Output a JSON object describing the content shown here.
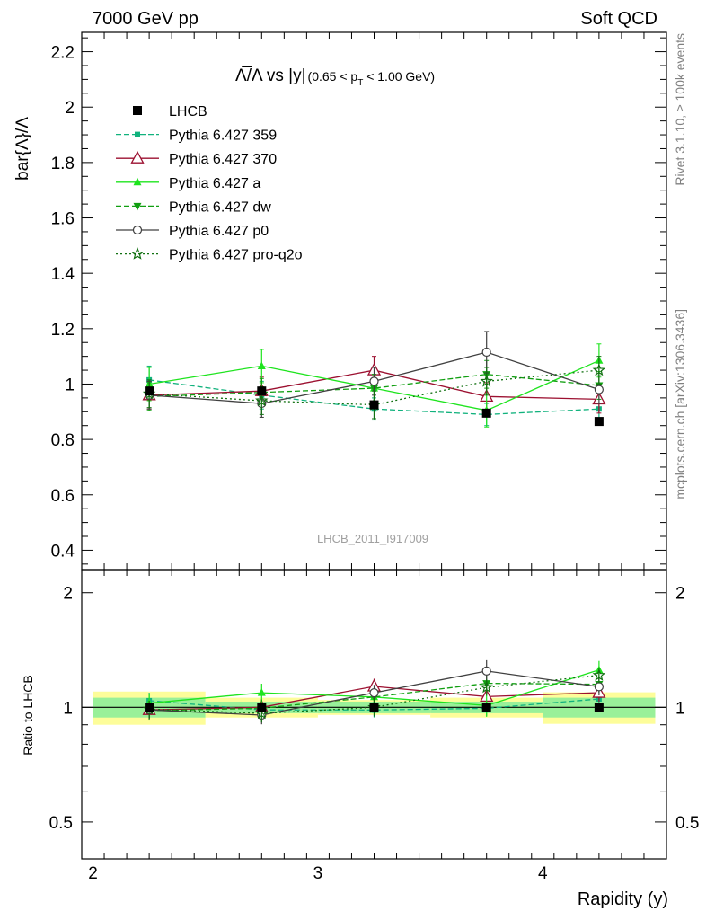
{
  "header": {
    "left": "7000 GeV pp",
    "right": "Soft QCD"
  },
  "side_labels": {
    "rivet": "Rivet 3.1.10, ≥ 100k events",
    "mcplots": "mcplots.cern.ch [arXiv:1306.3436]"
  },
  "chart_data": {
    "type": "line",
    "title": {
      "main": "Λ̅/Λ vs |y|",
      "cut_prefix": "(0.65 < p",
      "cut_sub": "T",
      "cut_suffix": " < 1.00 GeV)"
    },
    "analysis_label": "LHCB_2011_I917009",
    "xlabel": "Rapidity (y)",
    "ylabel": "bar{Λ}/Λ",
    "ratio_ylabel": "Ratio to LHCB",
    "xlim": [
      1.95,
      4.55
    ],
    "ylim": [
      0.33,
      2.27
    ],
    "ratio_ylim": [
      0.4,
      2.3
    ],
    "x_ticks": [
      "2",
      "3",
      "4"
    ],
    "y_ticks": [
      "0.4",
      "0.6",
      "0.8",
      "1",
      "1.2",
      "1.4",
      "1.6",
      "1.8",
      "2",
      "2.2"
    ],
    "ratio_ticks": [
      "0.5",
      "1",
      "2"
    ],
    "x": [
      2.25,
      2.75,
      3.25,
      3.75,
      4.25
    ],
    "data": {
      "name": "LHCB",
      "values": [
        0.975,
        0.975,
        0.925,
        0.895,
        0.865
      ],
      "bins": [
        [
          2.0,
          2.5
        ],
        [
          2.5,
          3.0
        ],
        [
          3.0,
          3.5
        ],
        [
          3.5,
          4.0
        ],
        [
          4.0,
          4.5
        ]
      ],
      "ratio_band_inner": [
        0.06,
        0.035,
        0.035,
        0.035,
        0.06
      ],
      "ratio_band_outer": [
        0.1,
        0.06,
        0.045,
        0.06,
        0.095
      ]
    },
    "series": [
      {
        "name": "Pythia 6.427 359",
        "color": "#11b27d",
        "dash": "6,3",
        "marker": "small-square",
        "values": [
          1.015,
          0.96,
          0.91,
          0.89,
          0.91
        ],
        "errors": [
          0.05,
          0.05,
          0.04,
          0.04,
          0.04
        ]
      },
      {
        "name": "Pythia 6.427 370",
        "color": "#9c1030",
        "dash": "",
        "marker": "open-triangle",
        "values": [
          0.96,
          0.975,
          1.05,
          0.955,
          0.945
        ],
        "errors": [
          0.05,
          0.05,
          0.05,
          0.05,
          0.05
        ]
      },
      {
        "name": "Pythia 6.427 a",
        "color": "#1ee41e",
        "dash": "",
        "marker": "filled-triangle",
        "values": [
          1.0,
          1.065,
          0.985,
          0.905,
          1.085
        ],
        "errors": [
          0.06,
          0.06,
          0.05,
          0.06,
          0.06
        ]
      },
      {
        "name": "Pythia 6.427 dw",
        "color": "#119f11",
        "dash": "6,3",
        "marker": "filled-triangle-down",
        "values": [
          0.955,
          0.97,
          0.985,
          1.035,
          0.995
        ],
        "errors": [
          0.05,
          0.05,
          0.05,
          0.05,
          0.05
        ]
      },
      {
        "name": "Pythia 6.427 p0",
        "color": "#404040",
        "dash": "",
        "marker": "open-circle",
        "values": [
          0.96,
          0.93,
          1.01,
          1.115,
          0.98
        ],
        "errors": [
          0.05,
          0.05,
          0.05,
          0.075,
          0.05
        ]
      },
      {
        "name": "Pythia 6.427 pro-q2o",
        "color": "#117011",
        "dash": "2,3",
        "marker": "star",
        "values": [
          0.965,
          0.94,
          0.925,
          1.01,
          1.05
        ],
        "errors": [
          0.05,
          0.05,
          0.05,
          0.05,
          0.05
        ]
      }
    ],
    "grid": false,
    "legend_position": "top-left"
  }
}
